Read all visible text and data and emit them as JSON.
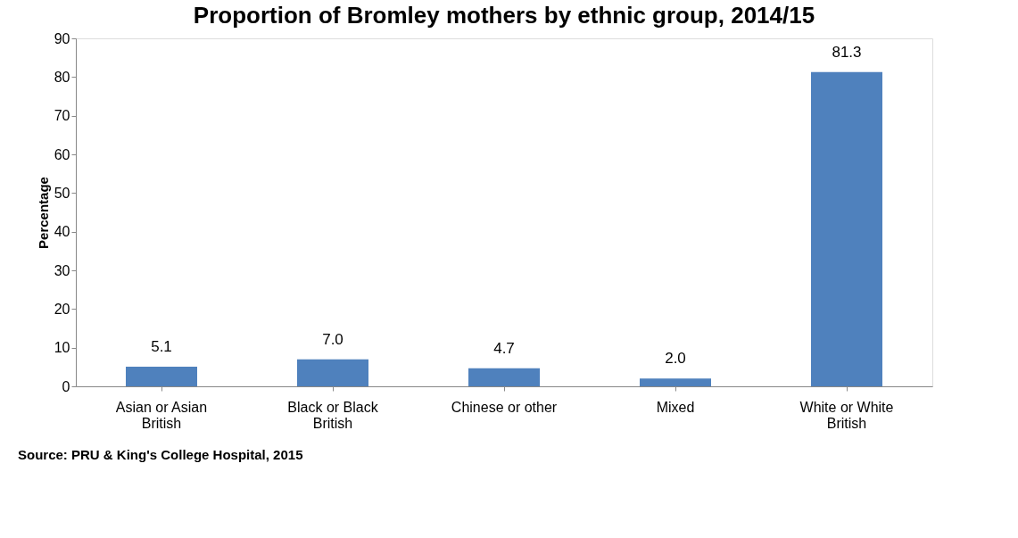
{
  "chart_data": {
    "type": "bar",
    "title": "Proportion of Bromley mothers by ethnic group, 2014/15",
    "ylabel": "Percentage",
    "categories": [
      "Asian or Asian British",
      "Black or Black British",
      "Chinese or other",
      "Mixed",
      "White or White British"
    ],
    "values": [
      5.1,
      7.0,
      4.7,
      2.0,
      81.3
    ],
    "color": "#4f81bd",
    "ylim": [
      0,
      90
    ],
    "yticks": [
      0,
      10,
      20,
      30,
      40,
      50,
      60,
      70,
      80,
      90
    ],
    "grid": false,
    "value_labels": [
      "5.1",
      "7.0",
      "4.7",
      "2.0",
      "81.3"
    ],
    "annotations": [
      "Source: PRU & King's College Hospital, 2015"
    ]
  }
}
